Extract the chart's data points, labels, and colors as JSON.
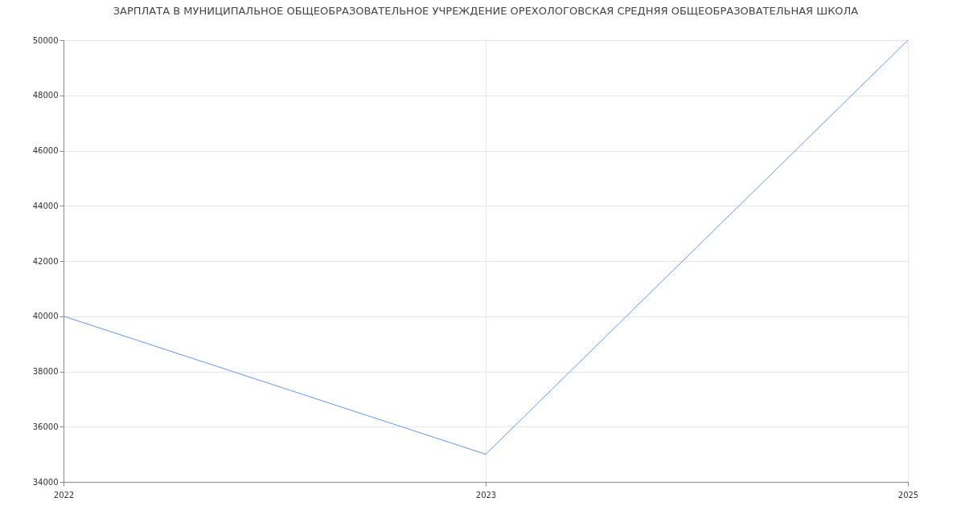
{
  "chart_data": {
    "type": "line",
    "title": "ЗАРПЛАТА В МУНИЦИПАЛЬНОЕ ОБЩЕОБРАЗОВАТЕЛЬНОЕ УЧРЕЖДЕНИЕ ОРЕХОЛОГОВСКАЯ СРЕДНЯЯ ОБЩЕОБРАЗОВАТЕЛЬНАЯ ШКОЛА",
    "categories": [
      "2022",
      "2023",
      "2025"
    ],
    "series": [
      {
        "color": "#6495ed",
        "values": [
          40000,
          35000,
          50000
        ]
      }
    ],
    "ylim": [
      34000,
      50000
    ],
    "yticks": [
      34000,
      36000,
      38000,
      40000,
      42000,
      44000,
      46000,
      48000,
      50000
    ],
    "grid": true,
    "marker": "none",
    "line_style": "solid"
  }
}
